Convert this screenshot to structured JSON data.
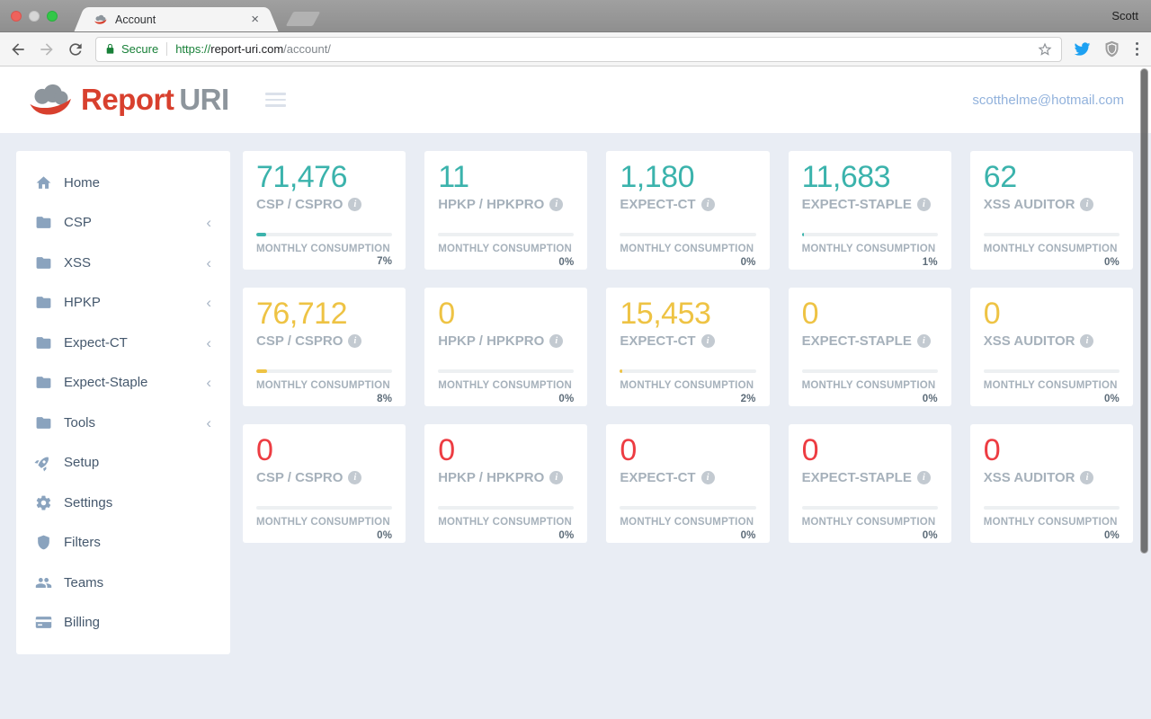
{
  "browser": {
    "profile": "Scott",
    "tab": {
      "title": "Account",
      "close_glyph": "×"
    },
    "address": {
      "security_label": "Secure",
      "scheme": "https://",
      "host": "report-uri.com",
      "path": "/account/"
    }
  },
  "header": {
    "logo_primary": "Report",
    "logo_secondary": "URI",
    "email": "scotthelme@hotmail.com"
  },
  "sidebar": {
    "items": [
      {
        "label": "Home",
        "icon": "home-icon",
        "expandable": false
      },
      {
        "label": "CSP",
        "icon": "folder-icon",
        "expandable": true
      },
      {
        "label": "XSS",
        "icon": "folder-icon",
        "expandable": true
      },
      {
        "label": "HPKP",
        "icon": "folder-icon",
        "expandable": true
      },
      {
        "label": "Expect-CT",
        "icon": "folder-icon",
        "expandable": true
      },
      {
        "label": "Expect-Staple",
        "icon": "folder-icon",
        "expandable": true
      },
      {
        "label": "Tools",
        "icon": "folder-icon",
        "expandable": true
      },
      {
        "label": "Setup",
        "icon": "rocket-icon",
        "expandable": false
      },
      {
        "label": "Settings",
        "icon": "gear-icon",
        "expandable": false
      },
      {
        "label": "Filters",
        "icon": "shield-icon",
        "expandable": false
      },
      {
        "label": "Teams",
        "icon": "users-icon",
        "expandable": false
      },
      {
        "label": "Billing",
        "icon": "credit-card-icon",
        "expandable": false
      }
    ]
  },
  "dashboard": {
    "meta_label": "MONTHLY CONSUMPTION",
    "rows": [
      {
        "color": "#3bb3ac",
        "cards": [
          {
            "value": "71,476",
            "label": "CSP / CSPRO",
            "percent": "7%"
          },
          {
            "value": "11",
            "label": "HPKP / HPKPRO",
            "percent": "0%"
          },
          {
            "value": "1,180",
            "label": "EXPECT-CT",
            "percent": "0%"
          },
          {
            "value": "11,683",
            "label": "EXPECT-STAPLE",
            "percent": "1%"
          },
          {
            "value": "62",
            "label": "XSS AUDITOR",
            "percent": "0%"
          }
        ]
      },
      {
        "color": "#eec344",
        "cards": [
          {
            "value": "76,712",
            "label": "CSP / CSPRO",
            "percent": "8%"
          },
          {
            "value": "0",
            "label": "HPKP / HPKPRO",
            "percent": "0%"
          },
          {
            "value": "15,453",
            "label": "EXPECT-CT",
            "percent": "2%"
          },
          {
            "value": "0",
            "label": "EXPECT-STAPLE",
            "percent": "0%"
          },
          {
            "value": "0",
            "label": "XSS AUDITOR",
            "percent": "0%"
          }
        ]
      },
      {
        "color": "#ed3c42",
        "cards": [
          {
            "value": "0",
            "label": "CSP / CSPRO",
            "percent": "0%"
          },
          {
            "value": "0",
            "label": "HPKP / HPKPRO",
            "percent": "0%"
          },
          {
            "value": "0",
            "label": "EXPECT-CT",
            "percent": "0%"
          },
          {
            "value": "0",
            "label": "EXPECT-STAPLE",
            "percent": "0%"
          },
          {
            "value": "0",
            "label": "XSS AUDITOR",
            "percent": "0%"
          }
        ]
      }
    ]
  }
}
